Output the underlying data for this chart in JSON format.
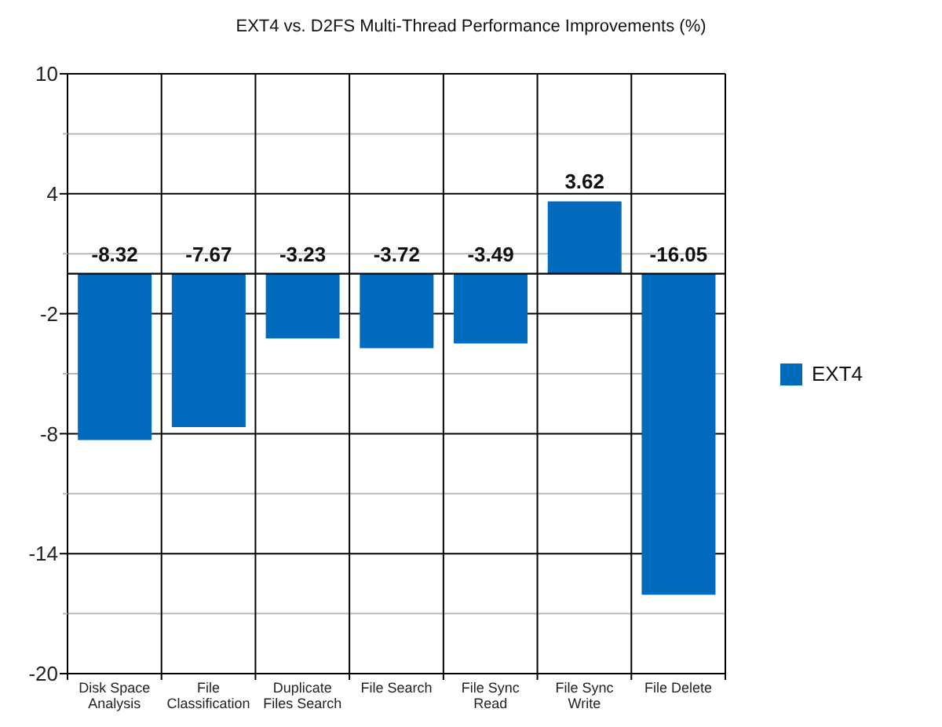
{
  "chart_data": {
    "type": "bar",
    "title": "EXT4 vs. D2FS Multi-Thread Performance Improvements (%)",
    "categories": [
      "Disk Space Analysis",
      "File Classification",
      "Duplicate Files Search",
      "File Search",
      "File Sync Read",
      "File Sync Write",
      "File Delete"
    ],
    "series": [
      {
        "name": "EXT4",
        "color": "#006abc",
        "values": [
          -8.32,
          -7.67,
          -3.23,
          -3.72,
          -3.49,
          3.62,
          -16.05
        ]
      }
    ],
    "ylim": [
      -20,
      10
    ],
    "yticks": [
      -20,
      {
        "value": -17,
        "label": null
      },
      -14,
      {
        "value": -11,
        "label": null
      },
      -8,
      {
        "value": -5,
        "label": null
      },
      -2,
      {
        "value": 1,
        "label": null
      },
      4,
      {
        "value": 7,
        "label": null
      },
      10
    ],
    "grid": true,
    "legend": "right",
    "data_labels": true
  }
}
